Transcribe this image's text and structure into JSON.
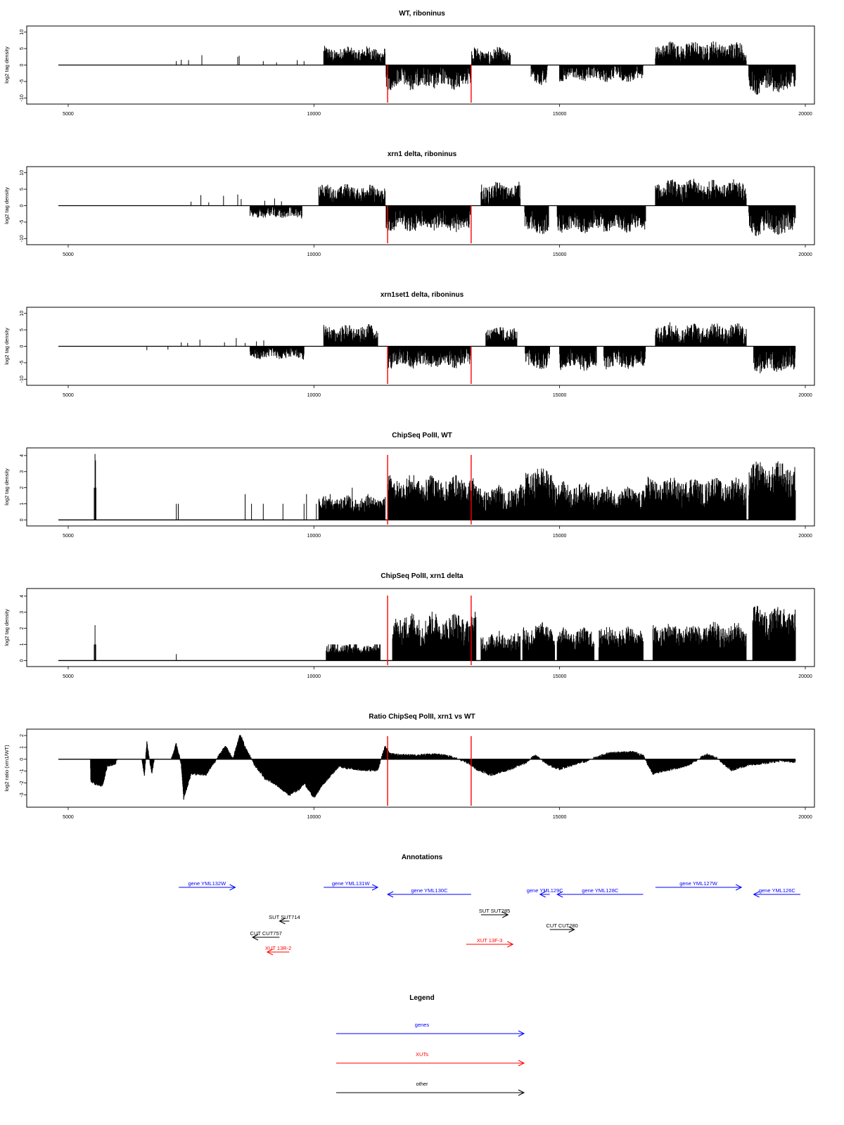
{
  "colors": {
    "gene": "#0000ff",
    "xut": "#ff0000",
    "other": "#000000",
    "marker": "#ff0000",
    "bars": "#000000"
  },
  "chart_data": [
    {
      "type": "bar",
      "title": "WT, riboninus",
      "ylabel": "log2 tag density",
      "xlim": [
        4800,
        19900
      ],
      "ylim": [
        -11,
        11
      ],
      "xticks": [
        5000,
        10000,
        15000,
        20000
      ],
      "yticks": [
        -10,
        -5,
        0,
        5,
        10
      ],
      "markers": [
        11500,
        13200
      ],
      "segments": [
        {
          "sign": 1,
          "x": [
            7200,
            7300,
            7450,
            7720,
            8450,
            8480,
            8970,
            9240,
            9660,
            9800,
            10980,
            11270
          ],
          "y": [
            1.2,
            1.6,
            1.5,
            3.0,
            2.5,
            2.8,
            1.2,
            0.8,
            1.5,
            1.2,
            2.0,
            1.5
          ]
        },
        {
          "sign": 1,
          "x0": 10200,
          "x1": 11450,
          "mean": 3.0,
          "amp": 2.2
        },
        {
          "sign": -1,
          "x0": 11470,
          "x1": 13200,
          "mean": 3.8,
          "amp": 3.0
        },
        {
          "sign": 1,
          "x0": 13210,
          "x1": 14000,
          "mean": 2.3,
          "amp": 2.5
        },
        {
          "sign": -1,
          "x0": 14420,
          "x1": 14750,
          "mean": 3.0,
          "amp": 2.5
        },
        {
          "sign": -1,
          "x0": 15000,
          "x1": 16700,
          "mean": 2.5,
          "amp": 2.2
        },
        {
          "sign": 1,
          "x0": 16950,
          "x1": 18800,
          "mean": 3.9,
          "amp": 2.8
        },
        {
          "sign": -1,
          "x0": 18850,
          "x1": 19800,
          "mean": 4.5,
          "amp": 3.5
        }
      ]
    },
    {
      "type": "bar",
      "title": "xrn1 delta, riboninus",
      "ylabel": "log2 tag density",
      "xlim": [
        4800,
        19900
      ],
      "ylim": [
        -11,
        11
      ],
      "xticks": [
        5000,
        10000,
        15000,
        20000
      ],
      "yticks": [
        -10,
        -5,
        0,
        5,
        10
      ],
      "markers": [
        11500,
        13200
      ],
      "segments": [
        {
          "sign": 1,
          "x": [
            7500,
            7700,
            7860,
            8160,
            8450,
            8520,
            9000,
            9200,
            9340
          ],
          "y": [
            1.2,
            3.2,
            1.0,
            3.0,
            3.4,
            2.0,
            1.5,
            2.2,
            1.3
          ]
        },
        {
          "sign": -1,
          "x0": 8700,
          "x1": 9760,
          "mean": 2.0,
          "amp": 1.6
        },
        {
          "sign": 1,
          "x0": 10100,
          "x1": 11450,
          "mean": 3.5,
          "amp": 2.5
        },
        {
          "sign": -1,
          "x0": 11470,
          "x1": 13180,
          "mean": 4.5,
          "amp": 2.8
        },
        {
          "sign": 1,
          "x0": 13400,
          "x1": 14200,
          "mean": 3.7,
          "amp": 2.8
        },
        {
          "sign": -1,
          "x0": 14290,
          "x1": 14780,
          "mean": 5.0,
          "amp": 3.0
        },
        {
          "sign": -1,
          "x0": 14950,
          "x1": 16750,
          "mean": 4.5,
          "amp": 3.0
        },
        {
          "sign": 1,
          "x0": 16950,
          "x1": 18800,
          "mean": 4.3,
          "amp": 3.0
        },
        {
          "sign": -1,
          "x0": 18850,
          "x1": 19800,
          "mean": 5.0,
          "amp": 3.4
        }
      ]
    },
    {
      "type": "bar",
      "title": "xrn1set1 delta, riboninus",
      "ylabel": "log2 tag density",
      "xlim": [
        4800,
        19900
      ],
      "ylim": [
        -11,
        11
      ],
      "xticks": [
        5000,
        10000,
        15000,
        20000
      ],
      "yticks": [
        -10,
        -5,
        0,
        5,
        10
      ],
      "markers": [
        11500,
        13200
      ],
      "segments": [
        {
          "sign": 1,
          "x": [
            7300,
            7430,
            7680,
            8180,
            8420,
            8600,
            8830,
            8980
          ],
          "y": [
            1.2,
            1.0,
            2.0,
            1.2,
            2.5,
            1.0,
            1.5,
            1.8
          ]
        },
        {
          "sign": -1,
          "x": [
            6600,
            7030
          ],
          "y": [
            1.2,
            1.0
          ]
        },
        {
          "sign": -1,
          "x0": 8700,
          "x1": 9800,
          "mean": 2.0,
          "amp": 1.6
        },
        {
          "sign": 1,
          "x0": 10200,
          "x1": 11300,
          "mean": 3.5,
          "amp": 2.5
        },
        {
          "sign": -1,
          "x0": 11500,
          "x1": 13180,
          "mean": 3.5,
          "amp": 2.6
        },
        {
          "sign": 1,
          "x0": 13500,
          "x1": 14130,
          "mean": 3.5,
          "amp": 2.4
        },
        {
          "sign": -1,
          "x0": 14300,
          "x1": 14800,
          "mean": 3.8,
          "amp": 2.6
        },
        {
          "sign": -1,
          "x0": 15000,
          "x1": 15750,
          "mean": 4.0,
          "amp": 2.8
        },
        {
          "sign": -1,
          "x0": 15900,
          "x1": 16750,
          "mean": 3.8,
          "amp": 2.6
        },
        {
          "sign": 1,
          "x0": 16950,
          "x1": 18800,
          "mean": 3.7,
          "amp": 2.8
        },
        {
          "sign": -1,
          "x0": 18950,
          "x1": 19800,
          "mean": 4.4,
          "amp": 3.2
        }
      ]
    },
    {
      "type": "bar",
      "title": "ChipSeq PolII, WT",
      "ylabel": "log2 tag density",
      "xlim": [
        4800,
        19900
      ],
      "ylim": [
        -0.2,
        4.3
      ],
      "xticks": [
        5000,
        10000,
        15000,
        20000
      ],
      "yticks": [
        0,
        1,
        2,
        3,
        4
      ],
      "markers": [
        11500,
        13200
      ],
      "segments": [
        {
          "sign": 1,
          "x": [
            5530,
            5545,
            5555,
            5565
          ],
          "y": [
            2.0,
            4.1,
            3.7,
            2.0
          ]
        },
        {
          "sign": 1,
          "x": [
            7200,
            7240,
            8600,
            8730,
            8970,
            9370,
            9800,
            9850,
            10050,
            10170,
            10330,
            10450,
            10600,
            10780,
            10900,
            11100
          ],
          "y": [
            1.0,
            1.0,
            1.6,
            1.0,
            1.0,
            1.0,
            1.0,
            1.6,
            1.0,
            1.0,
            1.6,
            1.0,
            1.0,
            2.0,
            1.0,
            1.6
          ]
        },
        {
          "sign": 1,
          "x0": 10100,
          "x1": 11450,
          "mean": 0.9,
          "amp": 0.5,
          "floor": true
        },
        {
          "sign": 1,
          "x0": 11500,
          "x1": 13280,
          "mean": 1.8,
          "amp": 0.8,
          "floor": true
        },
        {
          "sign": 1,
          "x0": 13280,
          "x1": 14300,
          "mean": 1.3,
          "amp": 0.7,
          "floor": true
        },
        {
          "sign": 1,
          "x0": 14300,
          "x1": 14900,
          "mean": 2.2,
          "amp": 0.9,
          "floor": true
        },
        {
          "sign": 1,
          "x0": 14900,
          "x1": 15600,
          "mean": 1.5,
          "amp": 0.7,
          "floor": true
        },
        {
          "sign": 1,
          "x0": 15600,
          "x1": 16750,
          "mean": 1.3,
          "amp": 0.6,
          "floor": true
        },
        {
          "sign": 1,
          "x0": 16750,
          "x1": 18800,
          "mean": 1.7,
          "amp": 0.8,
          "floor": true
        },
        {
          "sign": 1,
          "x0": 18850,
          "x1": 19800,
          "mean": 2.4,
          "amp": 1.0,
          "floor": true
        }
      ]
    },
    {
      "type": "bar",
      "title": "ChipSeq PolII, xrn1 delta",
      "ylabel": "log2 tag density",
      "xlim": [
        4800,
        19900
      ],
      "ylim": [
        -0.2,
        4.3
      ],
      "xticks": [
        5000,
        10000,
        15000,
        20000
      ],
      "yticks": [
        0,
        1,
        2,
        3,
        4
      ],
      "markers": [
        11500,
        13200
      ],
      "segments": [
        {
          "sign": 1,
          "x": [
            5530,
            5545,
            5560,
            7200
          ],
          "y": [
            1.0,
            2.2,
            1.0,
            0.4
          ]
        },
        {
          "sign": 1,
          "x0": 10250,
          "x1": 11350,
          "mean": 0.6,
          "amp": 0.3,
          "floor": true
        },
        {
          "sign": 1,
          "x0": 11600,
          "x1": 13300,
          "mean": 1.9,
          "amp": 0.9,
          "floor": true
        },
        {
          "sign": 1,
          "x0": 13400,
          "x1": 14200,
          "mean": 1.1,
          "amp": 0.6,
          "floor": true
        },
        {
          "sign": 1,
          "x0": 14250,
          "x1": 14900,
          "mean": 1.5,
          "amp": 0.7,
          "floor": true
        },
        {
          "sign": 1,
          "x0": 14950,
          "x1": 15700,
          "mean": 1.3,
          "amp": 0.6,
          "floor": true
        },
        {
          "sign": 1,
          "x0": 15800,
          "x1": 16700,
          "mean": 1.4,
          "amp": 0.6,
          "floor": true
        },
        {
          "sign": 1,
          "x0": 16900,
          "x1": 18800,
          "mean": 1.5,
          "amp": 0.7,
          "floor": true
        },
        {
          "sign": 1,
          "x0": 18930,
          "x1": 19800,
          "mean": 2.3,
          "amp": 0.9,
          "floor": true
        }
      ]
    },
    {
      "type": "area",
      "title": "Ratio ChipSeq PolII, xrn1 vs WT",
      "ylabel": "log2 ratio (xrn1/WT)",
      "xlim": [
        4800,
        19900
      ],
      "ylim": [
        -3.8,
        2.3
      ],
      "xticks": [
        5000,
        10000,
        15000,
        20000
      ],
      "yticks": [
        -3,
        -2,
        -1,
        0,
        1,
        2
      ],
      "markers": [
        11500,
        13200
      ],
      "profile": {
        "x": [
          4800,
          5450,
          5460,
          5550,
          5700,
          5800,
          5950,
          6000,
          6500,
          6550,
          6600,
          6700,
          6750,
          7100,
          7200,
          7300,
          7350,
          7500,
          7800,
          8200,
          8350,
          8500,
          8600,
          8800,
          9000,
          9200,
          9500,
          9700,
          9800,
          10000,
          10200,
          10500,
          10800,
          11000,
          11300,
          11450,
          11550,
          12000,
          12500,
          12800,
          13150,
          13300,
          13600,
          14000,
          14300,
          14500,
          14800,
          15000,
          15300,
          15500,
          16000,
          16500,
          16700,
          16900,
          17200,
          17600,
          18000,
          18200,
          18500,
          18900,
          19200,
          19500,
          19800
        ],
        "y": [
          0,
          0,
          -1.8,
          -2.1,
          -2.2,
          -0.5,
          -0.4,
          0,
          0,
          -1.3,
          1.4,
          -1.2,
          0,
          0,
          1.3,
          -0.4,
          -3.3,
          -1.2,
          -1.3,
          1.1,
          0,
          2.1,
          1.0,
          -0.5,
          -1.6,
          -2.0,
          -3.0,
          -2.5,
          -2.0,
          -3.2,
          -2.0,
          -0.6,
          -0.8,
          -0.9,
          -0.9,
          1.1,
          0.4,
          0.3,
          0.4,
          0.2,
          -0.3,
          -0.8,
          -1.3,
          -0.8,
          -0.3,
          0.3,
          -0.5,
          -0.8,
          -0.4,
          -0.2,
          0.5,
          0.6,
          0.3,
          -1.2,
          -0.9,
          -0.5,
          0.4,
          0.1,
          -0.9,
          -0.4,
          -0.3,
          -0.1,
          -0.2
        ]
      }
    }
  ],
  "annotations": {
    "title": "Annotations",
    "items": [
      {
        "label": "gene YML132W",
        "kind": "gene",
        "dir": "right",
        "x0": 7250,
        "x1": 8400,
        "row": 0
      },
      {
        "label": "gene YML131W",
        "kind": "gene",
        "dir": "right",
        "x0": 10200,
        "x1": 11300,
        "row": 0
      },
      {
        "label": "gene YML130C",
        "kind": "gene",
        "dir": "left",
        "x0": 11500,
        "x1": 13200,
        "row": 1
      },
      {
        "label": "gene YML129C",
        "kind": "gene",
        "dir": "left",
        "x0": 14600,
        "x1": 14800,
        "row": 1
      },
      {
        "label": "gene YML128C",
        "kind": "gene",
        "dir": "left",
        "x0": 14950,
        "x1": 16700,
        "row": 1
      },
      {
        "label": "gene YML127W",
        "kind": "gene",
        "dir": "right",
        "x0": 16950,
        "x1": 18700,
        "row": 0
      },
      {
        "label": "gene YML126C",
        "kind": "gene",
        "dir": "left",
        "x0": 18950,
        "x1": 19900,
        "row": 1
      },
      {
        "label": "SUT SUT714",
        "kind": "other",
        "dir": "left",
        "x0": 9300,
        "x1": 9500,
        "row": 4
      },
      {
        "label": "CUT CUT757",
        "kind": "other",
        "dir": "left",
        "x0": 8750,
        "x1": 9300,
        "row": 6
      },
      {
        "label": "XUT 13R-2",
        "kind": "xut",
        "dir": "left",
        "x0": 9050,
        "x1": 9500,
        "row": 8
      },
      {
        "label": "SUT SUT285",
        "kind": "other",
        "dir": "right",
        "x0": 13400,
        "x1": 13950,
        "row": 3
      },
      {
        "label": "CUT CUT280",
        "kind": "other",
        "dir": "right",
        "x0": 14800,
        "x1": 15300,
        "row": 5
      },
      {
        "label": "XUT 13F-3",
        "kind": "xut",
        "dir": "right",
        "x0": 13100,
        "x1": 14050,
        "row": 7
      }
    ]
  },
  "legend": {
    "title": "Legend",
    "items": [
      {
        "label": "genes",
        "kind": "gene"
      },
      {
        "label": "XUTs",
        "kind": "xut"
      },
      {
        "label": "other",
        "kind": "other"
      }
    ]
  }
}
